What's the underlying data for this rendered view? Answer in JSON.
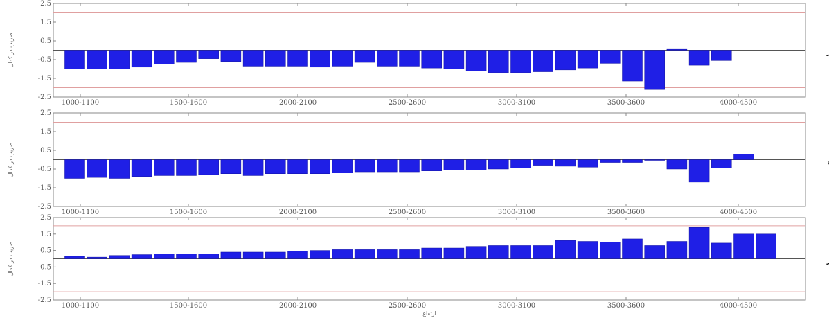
{
  "chart_data": [
    {
      "type": "bar",
      "panel_label": "مهر",
      "ylabel": "ضریب در کدال",
      "xlabel": "",
      "ylim": [
        -2.5,
        2.5
      ],
      "yticks": [
        "2.5",
        "1.5",
        "0.5",
        "-0.5",
        "-1.5",
        "-2.5"
      ],
      "xticks": [
        "1000-1100",
        "1500-1600",
        "2000-2100",
        "2500-2600",
        "3000-3100",
        "3500-3600",
        "4000-4500"
      ],
      "threshold_lines": [
        2,
        -2
      ],
      "values": [
        -1.0,
        -1.0,
        -1.0,
        -0.9,
        -0.75,
        -0.65,
        -0.45,
        -0.6,
        -0.85,
        -0.85,
        -0.85,
        -0.9,
        -0.85,
        -0.65,
        -0.85,
        -0.85,
        -0.95,
        -1.0,
        -1.1,
        -1.2,
        -1.2,
        -1.15,
        -1.05,
        -0.95,
        -0.7,
        -1.65,
        -2.1,
        0.05,
        -0.8,
        -0.55
      ],
      "bar_color": "#1f1fe6",
      "threshold_color": "#e0a0a0"
    },
    {
      "type": "bar",
      "panel_label": "آبان",
      "ylabel": "ضریب در کدال",
      "xlabel": "",
      "ylim": [
        -2.5,
        2.5
      ],
      "yticks": [
        "2.5",
        "1.5",
        "0.5",
        "-0.5",
        "-1.5",
        "-2.5"
      ],
      "xticks": [
        "1000-1100",
        "1500-1600",
        "2000-2100",
        "2500-2600",
        "3000-3100",
        "3500-3600",
        "4000-4500"
      ],
      "threshold_lines": [
        2,
        -2
      ],
      "values": [
        -1.0,
        -0.95,
        -1.0,
        -0.9,
        -0.85,
        -0.85,
        -0.8,
        -0.75,
        -0.85,
        -0.75,
        -0.75,
        -0.75,
        -0.7,
        -0.65,
        -0.65,
        -0.65,
        -0.6,
        -0.55,
        -0.55,
        -0.5,
        -0.45,
        -0.3,
        -0.35,
        -0.4,
        -0.15,
        -0.15,
        0.0,
        -0.5,
        -1.2,
        -0.45,
        0.3
      ],
      "bar_color": "#1f1fe6",
      "threshold_color": "#e0a0a0"
    },
    {
      "type": "bar",
      "panel_label": "آذر",
      "ylabel": "ضریب در کدال",
      "xlabel": "ارتفاع",
      "ylim": [
        -2.5,
        2.5
      ],
      "yticks": [
        "2.5",
        "1.5",
        "0.5",
        "-0.5",
        "-1.5",
        "-2.5"
      ],
      "xticks": [
        "1000-1100",
        "1500-1600",
        "2000-2100",
        "2500-2600",
        "3000-3100",
        "3500-3600",
        "4000-4500"
      ],
      "threshold_lines": [
        2,
        -2
      ],
      "values": [
        0.15,
        0.1,
        0.2,
        0.25,
        0.3,
        0.3,
        0.3,
        0.4,
        0.4,
        0.4,
        0.45,
        0.5,
        0.55,
        0.55,
        0.55,
        0.55,
        0.65,
        0.65,
        0.75,
        0.8,
        0.8,
        0.8,
        1.1,
        1.05,
        1.0,
        1.2,
        0.8,
        1.05,
        1.9,
        0.95,
        1.5,
        1.5
      ],
      "bar_color": "#1f1fe6",
      "threshold_color": "#e0a0a0"
    }
  ]
}
